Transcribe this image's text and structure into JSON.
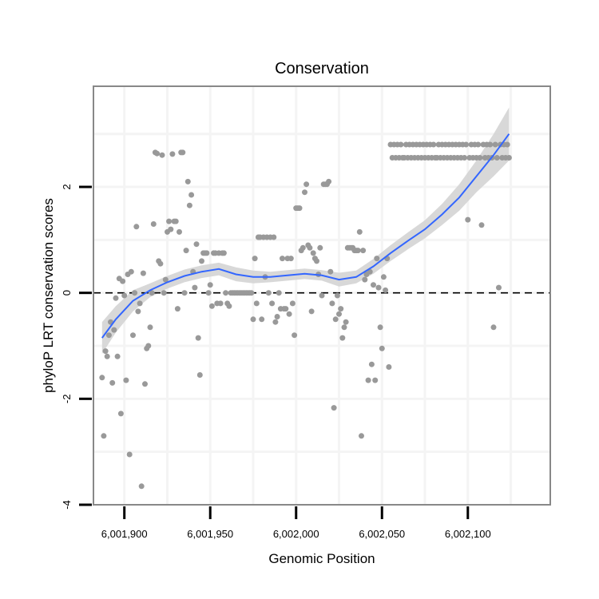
{
  "chart_data": {
    "type": "scatter",
    "title": "Conservation",
    "xlabel": "Genomic Position",
    "ylabel": "phyloP LRT conservation scores",
    "xlim": [
      6001882,
      6002148
    ],
    "ylim": [
      -4,
      3.9
    ],
    "x_ticks": [
      {
        "value": 6001900,
        "label": "6,001,900"
      },
      {
        "value": 6001950,
        "label": "6,001,950"
      },
      {
        "value": 6002000,
        "label": "6,002,000"
      },
      {
        "value": 6002050,
        "label": "6,002,050"
      },
      {
        "value": 6002100,
        "label": "6,002,100"
      }
    ],
    "y_ticks": [
      {
        "value": -4,
        "label": "-4"
      },
      {
        "value": -2,
        "label": "-2"
      },
      {
        "value": 0,
        "label": "0"
      },
      {
        "value": 2,
        "label": "2"
      }
    ],
    "reference_line": {
      "y": 0,
      "style": "dashed"
    },
    "grid": true,
    "colors": {
      "points": "#999999",
      "smooth_line": "#3366ff",
      "ribbon": "#d4d4d4",
      "grid": "#f4f4f4",
      "border": "#888888",
      "axis_ticks": "#000000"
    },
    "series": [
      {
        "name": "phyloP scores",
        "points": [
          [
            6001887,
            -1.6
          ],
          [
            6001888,
            -2.7
          ],
          [
            6001889,
            -1.1
          ],
          [
            6001890,
            -1.2
          ],
          [
            6001891,
            -0.8
          ],
          [
            6001892,
            -0.55
          ],
          [
            6001893,
            -1.7
          ],
          [
            6001894,
            -0.7
          ],
          [
            6001895,
            -0.1
          ],
          [
            6001896,
            -1.2
          ],
          [
            6001897,
            0.27
          ],
          [
            6001898,
            -2.28
          ],
          [
            6001899,
            0.22
          ],
          [
            6001900,
            -0.05
          ],
          [
            6001901,
            -1.65
          ],
          [
            6001902,
            0.35
          ],
          [
            6001903,
            -3.05
          ],
          [
            6001904,
            0.4
          ],
          [
            6001905,
            -0.8
          ],
          [
            6001906,
            0.0
          ],
          [
            6001907,
            1.25
          ],
          [
            6001908,
            -0.35
          ],
          [
            6001909,
            -0.2
          ],
          [
            6001910,
            -3.65
          ],
          [
            6001911,
            0.37
          ],
          [
            6001912,
            -1.72
          ],
          [
            6001913,
            -1.05
          ],
          [
            6001914,
            -1.0
          ],
          [
            6001915,
            -0.65
          ],
          [
            6001916,
            0.0
          ],
          [
            6001917,
            1.3
          ],
          [
            6001918,
            2.65
          ],
          [
            6001919,
            2.63
          ],
          [
            6001920,
            0.6
          ],
          [
            6001921,
            0.55
          ],
          [
            6001922,
            2.6
          ],
          [
            6001923,
            0.0
          ],
          [
            6001924,
            0.25
          ],
          [
            6001925,
            1.15
          ],
          [
            6001926,
            1.35
          ],
          [
            6001927,
            1.2
          ],
          [
            6001928,
            2.62
          ],
          [
            6001929,
            1.35
          ],
          [
            6001930,
            1.35
          ],
          [
            6001931,
            -0.3
          ],
          [
            6001932,
            1.15
          ],
          [
            6001933,
            2.65
          ],
          [
            6001934,
            2.65
          ],
          [
            6001935,
            0.0
          ],
          [
            6001936,
            0.8
          ],
          [
            6001937,
            2.1
          ],
          [
            6001938,
            1.65
          ],
          [
            6001939,
            1.85
          ],
          [
            6001940,
            0.4
          ],
          [
            6001941,
            0.1
          ],
          [
            6001942,
            0.92
          ],
          [
            6001943,
            -0.85
          ],
          [
            6001944,
            -1.55
          ],
          [
            6001945,
            0.6
          ],
          [
            6001946,
            0.75
          ],
          [
            6001947,
            0.75
          ],
          [
            6001948,
            0.75
          ],
          [
            6001949,
            0.0
          ],
          [
            6001950,
            0.15
          ],
          [
            6001951,
            -0.25
          ],
          [
            6001952,
            0.75
          ],
          [
            6001953,
            0.75
          ],
          [
            6001954,
            -0.2
          ],
          [
            6001955,
            0.75
          ],
          [
            6001956,
            -0.2
          ],
          [
            6001957,
            0.75
          ],
          [
            6001958,
            0.75
          ],
          [
            6001959,
            0.0
          ],
          [
            6001960,
            -0.2
          ],
          [
            6001961,
            -0.25
          ],
          [
            6001962,
            0.0
          ],
          [
            6001963,
            0.0
          ],
          [
            6001964,
            0.0
          ],
          [
            6001965,
            0.0
          ],
          [
            6001966,
            0.0
          ],
          [
            6001967,
            0.0
          ],
          [
            6001968,
            0.0
          ],
          [
            6001969,
            0.0
          ],
          [
            6001970,
            0.0
          ],
          [
            6001971,
            0.0
          ],
          [
            6001972,
            0.0
          ],
          [
            6001973,
            0.0
          ],
          [
            6001974,
            0.0
          ],
          [
            6001975,
            -0.5
          ],
          [
            6001976,
            0.65
          ],
          [
            6001977,
            -0.2
          ],
          [
            6001978,
            1.05
          ],
          [
            6001979,
            1.05
          ],
          [
            6001980,
            -0.5
          ],
          [
            6001981,
            1.05
          ],
          [
            6001982,
            0.3
          ],
          [
            6001983,
            1.05
          ],
          [
            6001984,
            0.0
          ],
          [
            6001985,
            1.05
          ],
          [
            6001986,
            -0.2
          ],
          [
            6001987,
            1.05
          ],
          [
            6001988,
            -0.55
          ],
          [
            6001989,
            -0.45
          ],
          [
            6001990,
            0.0
          ],
          [
            6001991,
            -0.3
          ],
          [
            6001992,
            0.65
          ],
          [
            6001993,
            -0.3
          ],
          [
            6001994,
            -0.3
          ],
          [
            6001995,
            0.65
          ],
          [
            6001996,
            -0.4
          ],
          [
            6001997,
            0.65
          ],
          [
            6001998,
            -0.2
          ],
          [
            6001999,
            -0.8
          ],
          [
            6002000,
            1.6
          ],
          [
            6002001,
            1.6
          ],
          [
            6002002,
            1.6
          ],
          [
            6002003,
            0.8
          ],
          [
            6002004,
            0.85
          ],
          [
            6002005,
            1.9
          ],
          [
            6002006,
            2.05
          ],
          [
            6002007,
            0.9
          ],
          [
            6002008,
            0.85
          ],
          [
            6002009,
            -0.35
          ],
          [
            6002010,
            0.75
          ],
          [
            6002011,
            0.65
          ],
          [
            6002012,
            0.6
          ],
          [
            6002013,
            0.35
          ],
          [
            6002014,
            0.85
          ],
          [
            6002015,
            -0.05
          ],
          [
            6002016,
            2.05
          ],
          [
            6002017,
            2.05
          ],
          [
            6002018,
            2.05
          ],
          [
            6002019,
            2.1
          ],
          [
            6002020,
            0.4
          ],
          [
            6002021,
            -0.2
          ],
          [
            6002022,
            -2.17
          ],
          [
            6002023,
            -0.5
          ],
          [
            6002024,
            -0.05
          ],
          [
            6002025,
            -0.4
          ],
          [
            6002026,
            -0.3
          ],
          [
            6002027,
            -0.85
          ],
          [
            6002028,
            -0.65
          ],
          [
            6002029,
            -0.55
          ],
          [
            6002030,
            0.85
          ],
          [
            6002031,
            0.85
          ],
          [
            6002032,
            0.85
          ],
          [
            6002033,
            0.85
          ],
          [
            6002034,
            0.8
          ],
          [
            6002035,
            0.8
          ],
          [
            6002036,
            0.8
          ],
          [
            6002037,
            1.15
          ],
          [
            6002038,
            -2.7
          ],
          [
            6002039,
            0.8
          ],
          [
            6002040,
            0.25
          ],
          [
            6002041,
            0.35
          ],
          [
            6002042,
            -1.65
          ],
          [
            6002043,
            0.4
          ],
          [
            6002044,
            -1.35
          ],
          [
            6002045,
            0.15
          ],
          [
            6002046,
            -1.65
          ],
          [
            6002047,
            0.65
          ],
          [
            6002048,
            0.1
          ],
          [
            6002049,
            -0.65
          ],
          [
            6002050,
            -1.05
          ],
          [
            6002051,
            0.3
          ],
          [
            6002052,
            0.05
          ],
          [
            6002053,
            0.65
          ],
          [
            6002054,
            -1.4
          ],
          [
            6002055,
            2.8
          ],
          [
            6002056,
            2.55
          ],
          [
            6002057,
            2.8
          ],
          [
            6002058,
            2.55
          ],
          [
            6002059,
            2.8
          ],
          [
            6002060,
            2.55
          ],
          [
            6002061,
            2.8
          ],
          [
            6002062,
            2.55
          ],
          [
            6002063,
            2.55
          ],
          [
            6002064,
            2.8
          ],
          [
            6002065,
            2.55
          ],
          [
            6002066,
            2.8
          ],
          [
            6002067,
            2.55
          ],
          [
            6002068,
            2.8
          ],
          [
            6002069,
            2.55
          ],
          [
            6002070,
            2.8
          ],
          [
            6002071,
            2.55
          ],
          [
            6002072,
            2.8
          ],
          [
            6002073,
            2.55
          ],
          [
            6002074,
            2.8
          ],
          [
            6002075,
            2.55
          ],
          [
            6002076,
            2.8
          ],
          [
            6002077,
            2.55
          ],
          [
            6002078,
            2.8
          ],
          [
            6002079,
            2.55
          ],
          [
            6002080,
            2.8
          ],
          [
            6002081,
            2.55
          ],
          [
            6002082,
            2.55
          ],
          [
            6002083,
            2.8
          ],
          [
            6002084,
            2.55
          ],
          [
            6002085,
            2.8
          ],
          [
            6002086,
            2.55
          ],
          [
            6002087,
            2.8
          ],
          [
            6002088,
            2.55
          ],
          [
            6002089,
            2.8
          ],
          [
            6002090,
            2.55
          ],
          [
            6002091,
            2.8
          ],
          [
            6002092,
            2.55
          ],
          [
            6002093,
            2.8
          ],
          [
            6002094,
            2.55
          ],
          [
            6002095,
            2.8
          ],
          [
            6002096,
            2.55
          ],
          [
            6002097,
            2.8
          ],
          [
            6002098,
            2.55
          ],
          [
            6002099,
            2.8
          ],
          [
            6002100,
            1.38
          ],
          [
            6002101,
            2.55
          ],
          [
            6002102,
            2.8
          ],
          [
            6002103,
            2.55
          ],
          [
            6002104,
            2.8
          ],
          [
            6002105,
            2.55
          ],
          [
            6002106,
            2.8
          ],
          [
            6002107,
            2.55
          ],
          [
            6002108,
            1.28
          ],
          [
            6002109,
            2.8
          ],
          [
            6002110,
            2.55
          ],
          [
            6002111,
            2.8
          ],
          [
            6002112,
            2.55
          ],
          [
            6002113,
            2.8
          ],
          [
            6002114,
            2.55
          ],
          [
            6002115,
            -0.65
          ],
          [
            6002116,
            2.8
          ],
          [
            6002117,
            2.55
          ],
          [
            6002118,
            0.1
          ],
          [
            6002119,
            2.8
          ],
          [
            6002120,
            2.55
          ],
          [
            6002121,
            2.8
          ],
          [
            6002122,
            2.55
          ],
          [
            6002123,
            2.8
          ],
          [
            6002124,
            2.55
          ]
        ]
      }
    ],
    "smooth": {
      "method": "loess",
      "x": [
        6001887,
        6001895,
        6001905,
        6001915,
        6001925,
        6001935,
        6001945,
        6001955,
        6001965,
        6001975,
        6001985,
        6001995,
        6002005,
        6002015,
        6002025,
        6002035,
        6002045,
        6002055,
        6002065,
        6002075,
        6002085,
        6002095,
        6002105,
        6002115,
        6002124
      ],
      "y": [
        -0.85,
        -0.5,
        -0.15,
        0.05,
        0.2,
        0.32,
        0.4,
        0.45,
        0.35,
        0.3,
        0.3,
        0.33,
        0.36,
        0.33,
        0.25,
        0.3,
        0.5,
        0.75,
        0.98,
        1.2,
        1.48,
        1.8,
        2.2,
        2.6,
        3.0
      ],
      "lower": [
        -1.15,
        -0.75,
        -0.35,
        -0.08,
        0.08,
        0.2,
        0.28,
        0.33,
        0.22,
        0.18,
        0.2,
        0.23,
        0.26,
        0.23,
        0.12,
        0.18,
        0.36,
        0.6,
        0.82,
        1.03,
        1.28,
        1.55,
        1.9,
        2.2,
        2.5
      ],
      "upper": [
        -0.55,
        -0.25,
        0.05,
        0.18,
        0.32,
        0.44,
        0.52,
        0.57,
        0.48,
        0.42,
        0.4,
        0.43,
        0.46,
        0.43,
        0.38,
        0.42,
        0.64,
        0.9,
        1.14,
        1.37,
        1.68,
        2.05,
        2.5,
        3.0,
        3.5
      ]
    }
  }
}
